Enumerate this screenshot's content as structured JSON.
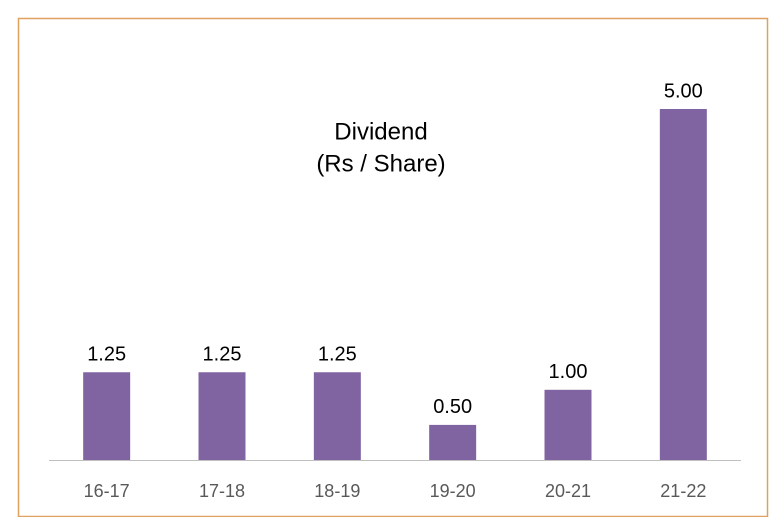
{
  "chart_data": {
    "type": "bar",
    "title": "Dividend",
    "subtitle": "(Rs / Share)",
    "categories": [
      "16-17",
      "17-18",
      "18-19",
      "19-20",
      "20-21",
      "21-22"
    ],
    "values": [
      1.25,
      1.25,
      1.25,
      0.5,
      1,
      5
    ],
    "value_labels": [
      "1.25",
      "1.25",
      "1.25",
      "0.50",
      "1.00",
      "5.00"
    ],
    "color": "#8064a2"
  }
}
